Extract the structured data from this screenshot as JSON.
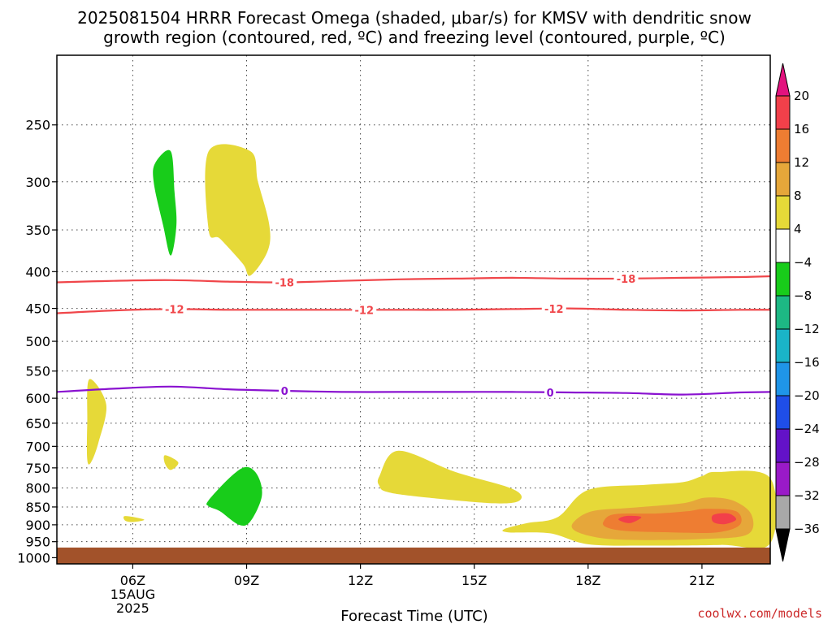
{
  "title_line1": "2025081504 HRRR Forecast Omega (shaded, μbar/s) for KMSV with dendritic snow",
  "title_line2": "growth region (contoured, red, ºC) and freezing level (contoured, purple, ºC)",
  "credit": "coolwx.com/models",
  "chart_data": {
    "type": "heatmap",
    "title": "2025081504 HRRR Forecast Omega (shaded, μbar/s) for KMSV with dendritic snow growth region (contoured, red, ºC) and freezing level (contoured, purple, ºC)",
    "xlabel": "Forecast Time (UTC)",
    "ylabel": "",
    "x_unit": "hours UTC, 15 Aug 2025",
    "xlim": [
      4,
      22.8
    ],
    "ylim": [
      1020,
      200
    ],
    "y_scale": "log-pressure",
    "grid": true,
    "x_ticks": [
      {
        "x": 6,
        "label": "06Z",
        "sub": [
          "15AUG",
          "2025"
        ]
      },
      {
        "x": 9,
        "label": "09Z"
      },
      {
        "x": 12,
        "label": "12Z"
      },
      {
        "x": 15,
        "label": "15Z"
      },
      {
        "x": 18,
        "label": "18Z"
      },
      {
        "x": 21,
        "label": "21Z"
      }
    ],
    "y_ticks": [
      250,
      300,
      350,
      400,
      450,
      500,
      550,
      600,
      650,
      700,
      750,
      800,
      850,
      900,
      950,
      1000
    ],
    "colorbar": {
      "levels": [
        "20",
        "16",
        "12",
        "8",
        "4",
        "−4",
        "−8",
        "−12",
        "−16",
        "−20",
        "−24",
        "−28",
        "−32",
        "−36"
      ],
      "colors": [
        "#e3127e",
        "#f2404a",
        "#ee7d32",
        "#e6a73a",
        "#e6d938",
        "#ffffff",
        "#18cc1a",
        "#1db884",
        "#1ab4c8",
        "#1f95e8",
        "#1f4ee8",
        "#6312c8",
        "#9a1ac8",
        "#a8a8a8",
        "#000000"
      ]
    },
    "omega_regions": [
      {
        "value_band": "4 to 8",
        "color": "#e6d938",
        "points": [
          [
            8.0,
            272
          ],
          [
            9.1,
            272
          ],
          [
            9.3,
            300
          ],
          [
            9.6,
            345
          ],
          [
            9.55,
            375
          ],
          [
            9.1,
            405
          ],
          [
            8.9,
            390
          ],
          [
            8.3,
            360
          ],
          [
            8.0,
            350
          ]
        ]
      },
      {
        "value_band": "-8 to -4",
        "color": "#18cc1a",
        "points": [
          [
            6.6,
            282
          ],
          [
            7.0,
            272
          ],
          [
            7.1,
            310
          ],
          [
            7.15,
            345
          ],
          [
            7.0,
            380
          ],
          [
            6.8,
            345
          ],
          [
            6.55,
            300
          ]
        ]
      },
      {
        "value_band": "4 to 8",
        "color": "#e6d938",
        "points": [
          [
            4.85,
            565
          ],
          [
            5.3,
            612
          ],
          [
            5.1,
            690
          ],
          [
            4.9,
            737
          ],
          [
            4.8,
            730
          ],
          [
            4.8,
            650
          ]
        ]
      },
      {
        "value_band": "4 to 8",
        "color": "#e6d938",
        "points": [
          [
            6.85,
            720
          ],
          [
            7.2,
            737
          ],
          [
            7.0,
            755
          ],
          [
            6.85,
            740
          ]
        ]
      },
      {
        "value_band": "4 to 8",
        "color": "#e6d938",
        "points": [
          [
            5.8,
            875
          ],
          [
            6.3,
            885
          ],
          [
            6.0,
            892
          ],
          [
            5.8,
            888
          ]
        ]
      },
      {
        "value_band": "-8 to -4",
        "color": "#18cc1a",
        "points": [
          [
            8.0,
            832
          ],
          [
            8.6,
            770
          ],
          [
            9.0,
            748
          ],
          [
            9.3,
            770
          ],
          [
            9.4,
            822
          ],
          [
            9.1,
            890
          ],
          [
            8.8,
            900
          ],
          [
            8.3,
            862
          ],
          [
            8.0,
            848
          ]
        ]
      },
      {
        "value_band": "4 to 8",
        "color": "#e6d938",
        "points": [
          [
            12.5,
            770
          ],
          [
            13.0,
            710
          ],
          [
            14.5,
            760
          ],
          [
            16.0,
            802
          ],
          [
            16.2,
            832
          ],
          [
            15.5,
            840
          ],
          [
            13.5,
            822
          ],
          [
            12.7,
            810
          ],
          [
            12.5,
            795
          ]
        ]
      },
      {
        "value_band": "4 to 8",
        "color": "#e6d938",
        "points": [
          [
            15.8,
            912
          ],
          [
            16.4,
            895
          ],
          [
            17.2,
            878
          ],
          [
            18.0,
            805
          ],
          [
            19.5,
            792
          ],
          [
            20.5,
            785
          ],
          [
            21.0,
            770
          ],
          [
            21.4,
            760
          ],
          [
            22.8,
            775
          ],
          [
            22.8,
            955
          ],
          [
            21.5,
            960
          ],
          [
            19.5,
            962
          ],
          [
            18.0,
            958
          ],
          [
            17.0,
            925
          ],
          [
            15.9,
            922
          ]
        ]
      },
      {
        "value_band": "8 to 12",
        "color": "#e6a73a",
        "points": [
          [
            17.6,
            895
          ],
          [
            18.1,
            862
          ],
          [
            19.2,
            852
          ],
          [
            20.5,
            840
          ],
          [
            21.1,
            825
          ],
          [
            21.8,
            832
          ],
          [
            22.3,
            870
          ],
          [
            22.2,
            928
          ],
          [
            21.0,
            942
          ],
          [
            19.5,
            945
          ],
          [
            18.4,
            940
          ],
          [
            17.7,
            920
          ]
        ]
      },
      {
        "value_band": "12 to 16",
        "color": "#ee7d32",
        "points": [
          [
            18.4,
            892
          ],
          [
            18.7,
            870
          ],
          [
            19.8,
            868
          ],
          [
            20.6,
            862
          ],
          [
            21.1,
            855
          ],
          [
            21.9,
            862
          ],
          [
            22.0,
            900
          ],
          [
            21.4,
            922
          ],
          [
            20.2,
            922
          ],
          [
            19.0,
            918
          ],
          [
            18.5,
            908
          ]
        ]
      },
      {
        "value_band": "16 to 20",
        "color": "#f2404a",
        "points": [
          [
            18.8,
            885
          ],
          [
            19.0,
            875
          ],
          [
            19.4,
            878
          ],
          [
            19.1,
            895
          ]
        ]
      },
      {
        "value_band": "16 to 20",
        "color": "#f2404a",
        "points": [
          [
            21.3,
            872
          ],
          [
            21.7,
            868
          ],
          [
            21.9,
            885
          ],
          [
            21.6,
            898
          ],
          [
            21.3,
            892
          ]
        ]
      }
    ],
    "temperature_contours": [
      {
        "value": -18,
        "label": "-18",
        "color": "#f0464a",
        "points": [
          [
            4.0,
            414
          ],
          [
            5.5,
            412
          ],
          [
            7.0,
            411
          ],
          [
            8.5,
            413
          ],
          [
            10.0,
            414
          ],
          [
            11.5,
            412
          ],
          [
            13.0,
            410
          ],
          [
            14.5,
            409
          ],
          [
            16.0,
            408
          ],
          [
            17.5,
            409
          ],
          [
            19.0,
            409
          ],
          [
            20.5,
            408
          ],
          [
            22.0,
            407
          ],
          [
            22.8,
            406
          ]
        ],
        "label_x": [
          10.0,
          19.0
        ]
      },
      {
        "value": -12,
        "label": "-12",
        "color": "#f0464a",
        "points": [
          [
            4.0,
            457
          ],
          [
            5.5,
            453
          ],
          [
            7.0,
            451
          ],
          [
            8.5,
            452
          ],
          [
            10.0,
            452
          ],
          [
            11.5,
            452
          ],
          [
            13.0,
            452
          ],
          [
            14.5,
            452
          ],
          [
            16.0,
            451
          ],
          [
            17.5,
            450
          ],
          [
            19.0,
            452
          ],
          [
            20.5,
            453
          ],
          [
            22.0,
            452
          ],
          [
            22.8,
            452
          ]
        ],
        "label_x": [
          7.1,
          12.1,
          17.1
        ]
      },
      {
        "value": 0,
        "label": "0",
        "color": "#8a12d0",
        "points": [
          [
            4.0,
            588
          ],
          [
            5.5,
            582
          ],
          [
            7.0,
            578
          ],
          [
            8.5,
            583
          ],
          [
            10.0,
            586
          ],
          [
            11.5,
            588
          ],
          [
            13.0,
            588
          ],
          [
            14.5,
            588
          ],
          [
            16.0,
            588
          ],
          [
            17.5,
            589
          ],
          [
            19.0,
            590
          ],
          [
            20.5,
            593
          ],
          [
            22.0,
            589
          ],
          [
            22.8,
            588
          ]
        ],
        "label_x": [
          10.0,
          17.0
        ]
      }
    ],
    "surface": {
      "color": "#a2522a",
      "top_pressure": 968
    }
  }
}
